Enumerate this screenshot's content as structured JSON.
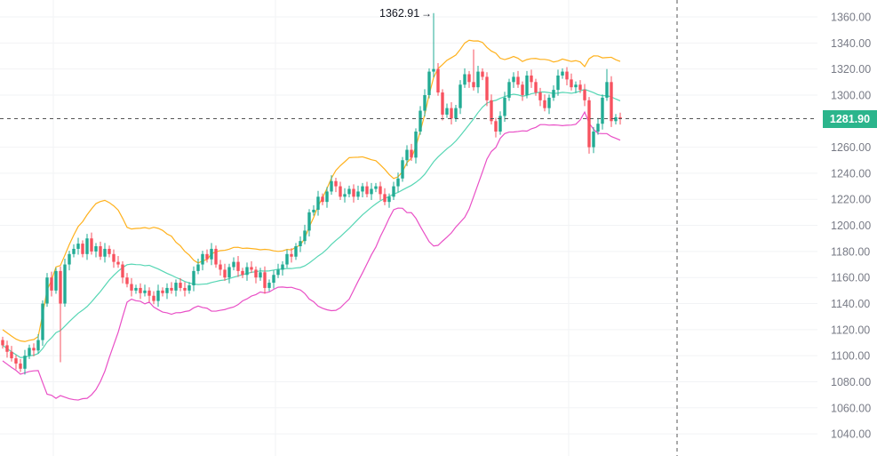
{
  "chart_data": {
    "type": "candlestick",
    "title": "",
    "indicator": "Bollinger Bands",
    "ylim": [
      1025,
      1372
    ],
    "y_ticks": [
      "1360.00",
      "1340.00",
      "1320.00",
      "1300.00",
      "1260.00",
      "1240.00",
      "1220.00",
      "1200.00",
      "1180.00",
      "1160.00",
      "1140.00",
      "1120.00",
      "1100.00",
      "1080.00",
      "1060.00",
      "1040.00"
    ],
    "y_tick_values": [
      1360,
      1340,
      1320,
      1300,
      1260,
      1240,
      1220,
      1200,
      1180,
      1160,
      1140,
      1120,
      1100,
      1080,
      1060,
      1040
    ],
    "first_open": 1112,
    "close": [
      1108,
      1103,
      1098,
      1094,
      1090,
      1100,
      1106,
      1104,
      1112,
      1140,
      1160,
      1150,
      1165,
      1140,
      1170,
      1178,
      1182,
      1186,
      1178,
      1190,
      1180,
      1184,
      1176,
      1182,
      1178,
      1172,
      1170,
      1160,
      1155,
      1150,
      1152,
      1148,
      1150,
      1146,
      1142,
      1150,
      1148,
      1152,
      1150,
      1156,
      1152,
      1150,
      1154,
      1165,
      1170,
      1178,
      1174,
      1182,
      1170,
      1166,
      1160,
      1168,
      1172,
      1165,
      1162,
      1168,
      1166,
      1160,
      1164,
      1152,
      1156,
      1162,
      1166,
      1170,
      1178,
      1176,
      1184,
      1188,
      1196,
      1210,
      1212,
      1222,
      1218,
      1226,
      1234,
      1230,
      1222,
      1224,
      1228,
      1222,
      1226,
      1230,
      1224,
      1228,
      1230,
      1224,
      1218,
      1222,
      1230,
      1236,
      1250,
      1258,
      1252,
      1272,
      1288,
      1300,
      1318,
      1320,
      1302,
      1285,
      1290,
      1282,
      1290,
      1308,
      1316,
      1310,
      1306,
      1318,
      1314,
      1296,
      1280,
      1272,
      1284,
      1298,
      1310,
      1314,
      1308,
      1300,
      1315,
      1310,
      1302,
      1296,
      1290,
      1298,
      1304,
      1315,
      1318,
      1312,
      1306,
      1308,
      1304,
      1296,
      1260,
      1272,
      1278,
      1298,
      1310,
      1280,
      1283,
      1281.9
    ],
    "wick_extremes": {
      "13": {
        "low": 1095
      },
      "97": {
        "high": 1362.91
      },
      "132": {
        "low": 1255
      },
      "106": {
        "high": 1335
      },
      "136": {
        "high": 1320
      }
    },
    "bands_period": 20,
    "bands_stddev": 2,
    "last_price": "1281.90",
    "high_annotation": "1362.91",
    "colors": {
      "up": "#22ab94",
      "down": "#f7525f",
      "upper": "#ffb11c",
      "middle": "#56d6b4",
      "lower": "#e94fc6",
      "last": "#2bb58c"
    }
  }
}
